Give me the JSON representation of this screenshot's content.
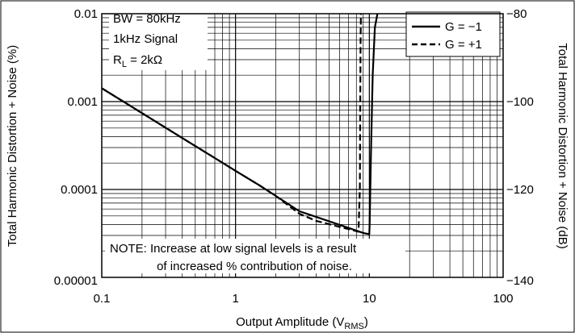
{
  "chart_data": {
    "type": "line",
    "xscale": "log",
    "yscale": "log",
    "xlim": [
      0.1,
      100
    ],
    "ylim": [
      1e-05,
      0.01
    ],
    "y2lim": [
      -140,
      -80
    ],
    "grid": true,
    "legend_position": "top-right",
    "xlabel": "Output Amplitude (V",
    "xlabel_sub": "RMS",
    "xlabel_end": ")",
    "ylabel": "Total Harmonic Distortion + Noise (%)",
    "y2label": "Total Harmonic Distortion + Noise (dB)",
    "xticks": [
      "0.1",
      "1",
      "10",
      "100"
    ],
    "yticks": [
      "0.00001",
      "0.0001",
      "0.001",
      "0.01"
    ],
    "y2ticks": [
      "−140",
      "−120",
      "−100",
      "−80"
    ],
    "annotations": {
      "line1": "BW = 80kHz",
      "line2": "1kHz Signal",
      "rl_prefix": "R",
      "rl_sub": "L",
      "rl_value": " = 2kΩ",
      "note_line1": "NOTE: Increase at low signal levels is a result",
      "note_line2": "of increased % contribution of noise."
    },
    "series": [
      {
        "name": "G = −1",
        "style": "solid",
        "x": [
          0.1,
          0.2,
          0.4,
          0.7,
          1.0,
          1.5,
          2.0,
          3.0,
          5.0,
          7.0,
          9.0,
          10.0,
          10.05,
          10.3,
          10.6,
          11.0,
          11.5
        ],
        "y": [
          0.00142,
          0.00074,
          0.000385,
          0.000228,
          0.000163,
          0.000112,
          8.45e-05,
          5.65e-05,
          4.35e-05,
          3.65e-05,
          3.2e-05,
          3.1e-05,
          4e-05,
          0.0003,
          0.002,
          0.007,
          0.01
        ]
      },
      {
        "name": "G = +1",
        "style": "dashed",
        "x": [
          0.1,
          0.2,
          0.4,
          0.7,
          1.0,
          1.5,
          2.0,
          3.0,
          4.0,
          6.0,
          7.5,
          8.3,
          8.5,
          8.55,
          8.6,
          8.65
        ],
        "y": [
          0.00142,
          0.00074,
          0.000385,
          0.000228,
          0.000163,
          0.000112,
          8.45e-05,
          5.3e-05,
          4.4e-05,
          3.75e-05,
          3.45e-05,
          3.3e-05,
          0.0001,
          0.001,
          0.005,
          0.01
        ]
      }
    ]
  }
}
